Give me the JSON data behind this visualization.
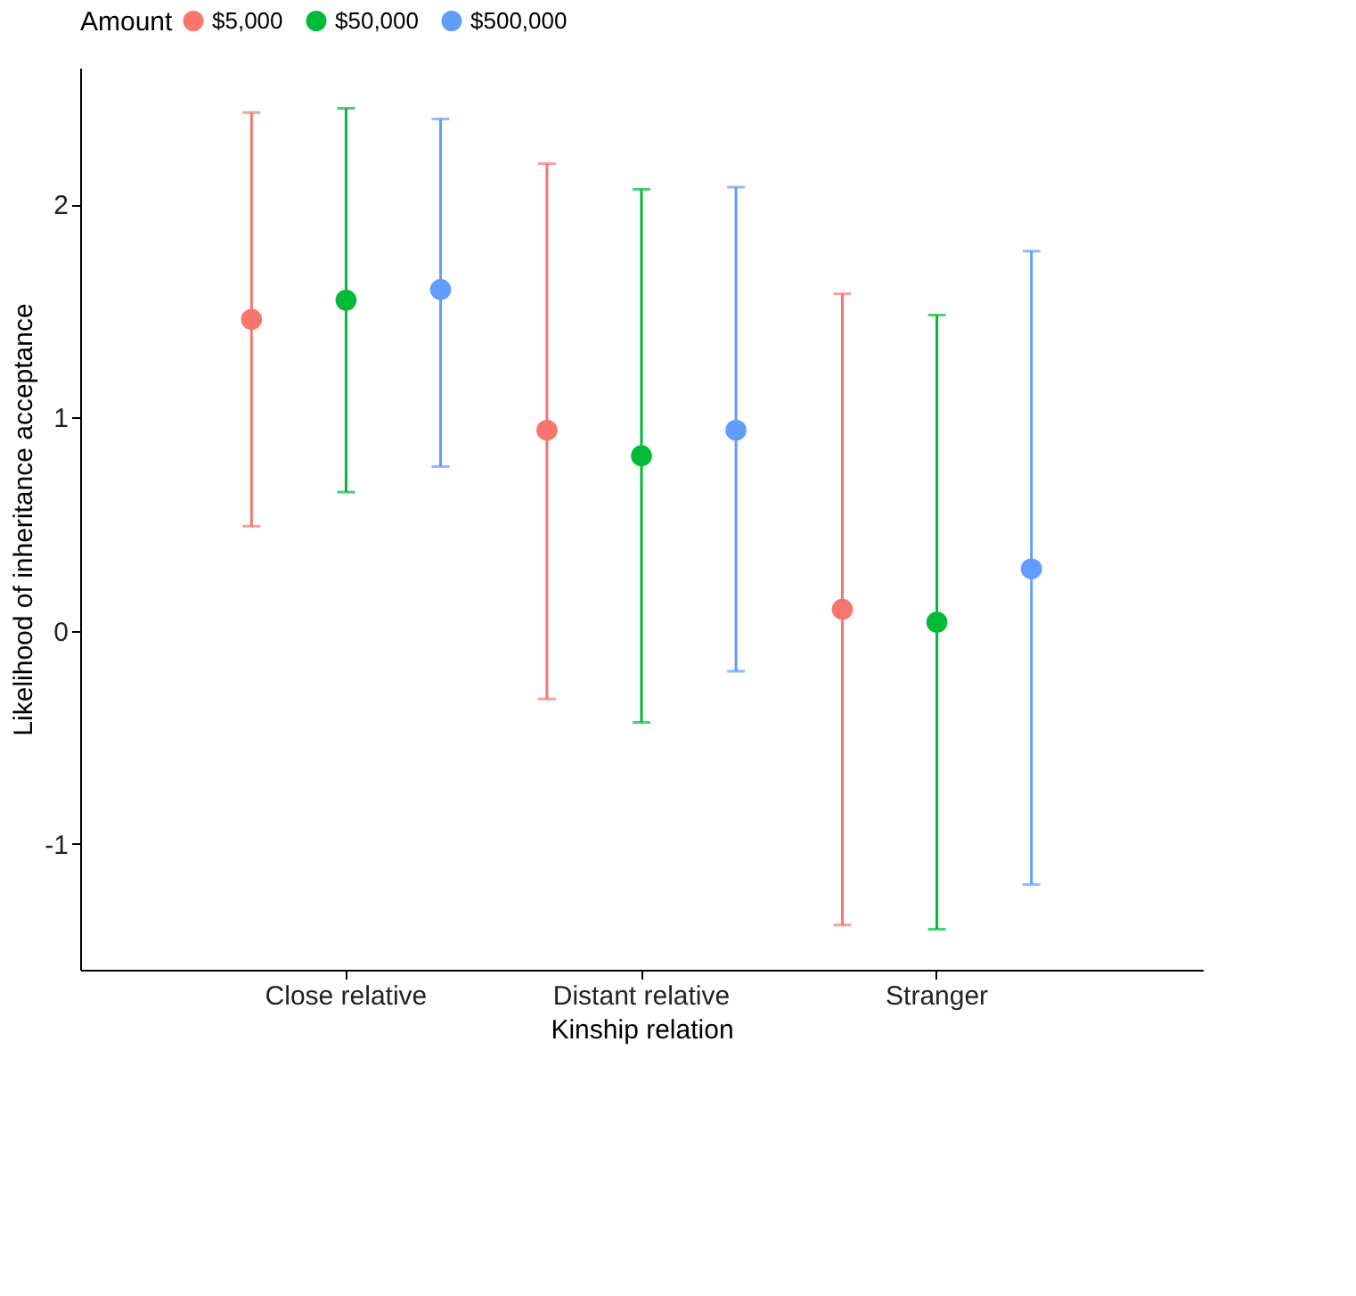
{
  "chart_data": {
    "type": "scatter",
    "xlabel": "Kinship relation",
    "ylabel": "Likelihood of inheritance acceptance",
    "legend_title": "Amount",
    "legend": "top",
    "grid": false,
    "marker": "circle",
    "categories": [
      "Close relative",
      "Distant relative",
      "Stranger"
    ],
    "ylim": [
      -1.59,
      2.64
    ],
    "yticks": [
      -1,
      0,
      1,
      2
    ],
    "series": [
      {
        "name": "$5,000",
        "color": "#f8766d",
        "values": [
          1.46,
          0.94,
          0.1
        ],
        "errors": [
          [
            0.49,
            2.43
          ],
          [
            -0.32,
            2.19
          ],
          [
            -1.38,
            1.58
          ]
        ]
      },
      {
        "name": "$50,000",
        "color": "#00ba38",
        "values": [
          1.55,
          0.82,
          0.04
        ],
        "errors": [
          [
            0.65,
            2.45
          ],
          [
            -0.43,
            2.07
          ],
          [
            -1.4,
            1.48
          ]
        ]
      },
      {
        "name": "$500,000",
        "color": "#619cff",
        "values": [
          1.6,
          0.94,
          0.29
        ],
        "errors": [
          [
            0.77,
            2.4
          ],
          [
            -0.19,
            2.08
          ],
          [
            -1.19,
            1.78
          ]
        ]
      }
    ]
  }
}
